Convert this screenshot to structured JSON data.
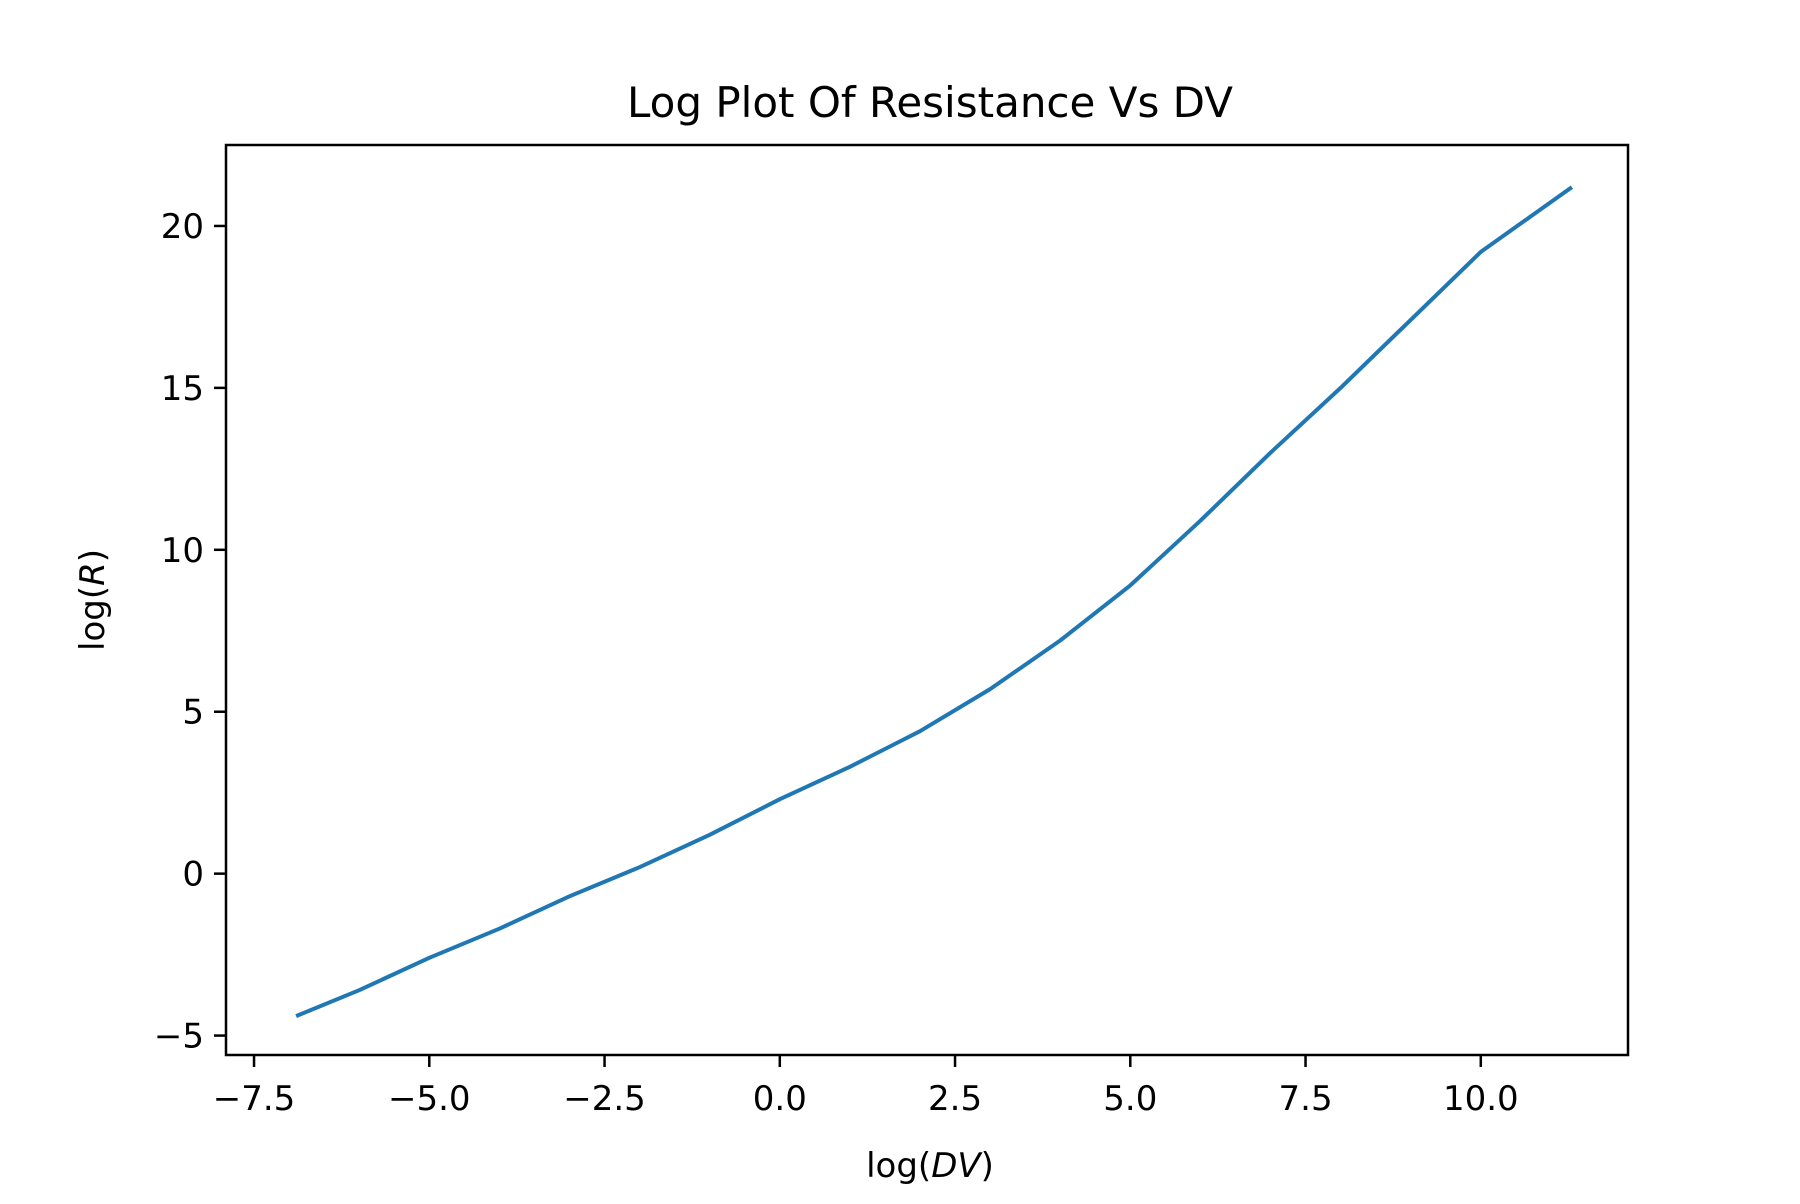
{
  "chart_data": {
    "type": "line",
    "title": "Log Plot Of Resistance Vs DV",
    "xlabel": "log(DV)",
    "ylabel": "log(R)",
    "xlim": [
      -7.9,
      12.1
    ],
    "ylim": [
      -5.6,
      22.5
    ],
    "x_ticks": [
      -7.5,
      -5.0,
      -2.5,
      0.0,
      2.5,
      5.0,
      7.5,
      10.0
    ],
    "x_tick_labels": [
      "−7.5",
      "−5.0",
      "−2.5",
      "0.0",
      "2.5",
      "5.0",
      "7.5",
      "10.0"
    ],
    "y_ticks": [
      -5,
      0,
      5,
      10,
      15,
      20
    ],
    "y_tick_labels": [
      "−5",
      "0",
      "5",
      "10",
      "15",
      "20"
    ],
    "grid": false,
    "series": [
      {
        "color": "#1f77b4",
        "x": [
          -6.9,
          -6.0,
          -5.0,
          -4.0,
          -3.0,
          -2.0,
          -1.0,
          0.0,
          1.0,
          2.0,
          3.0,
          4.0,
          5.0,
          6.0,
          7.0,
          8.0,
          9.0,
          10.0,
          11.3
        ],
        "y": [
          -4.4,
          -3.6,
          -2.6,
          -1.7,
          -0.7,
          0.2,
          1.2,
          2.3,
          3.3,
          4.4,
          5.7,
          7.2,
          8.9,
          10.9,
          13.0,
          15.0,
          17.1,
          19.2,
          21.2
        ]
      }
    ]
  }
}
